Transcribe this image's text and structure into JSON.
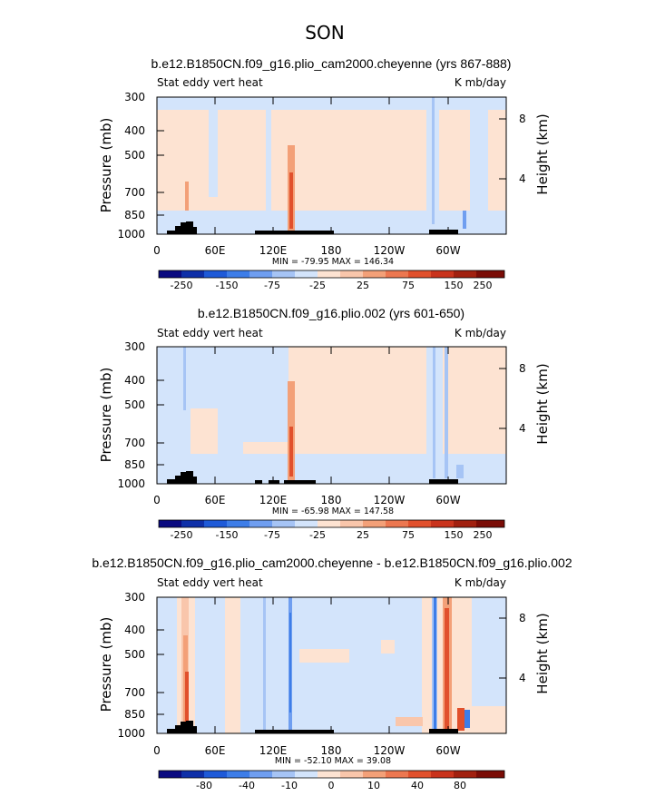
{
  "chart_data": {
    "type": "heatmap",
    "season": "SON",
    "panels": [
      {
        "title": "b.e12.B1850CN.f09_g16.plio_cam2000.cheyenne (yrs 867-888)",
        "left_label": "Stat eddy vert heat",
        "units": "K mb/day",
        "ylabel": "Pressure (mb)",
        "ylabel_right": "Height (km)",
        "y_ticks": [
          "300",
          "400",
          "500",
          "700",
          "850",
          "1000"
        ],
        "y_ticks_right": [
          "8",
          "4"
        ],
        "x_ticks": [
          "0",
          "60E",
          "120E",
          "180",
          "120W",
          "60W"
        ],
        "stats": "MIN = -79.95   MAX = 146.34",
        "colorbar_labels": [
          "-250",
          "-150",
          "-75",
          "-25",
          "25",
          "75",
          "150",
          "250"
        ],
        "colorbar_colors": [
          "#0a0a80",
          "#0e2fa8",
          "#1e5ad8",
          "#3d7de8",
          "#6f9ef0",
          "#a6c4f5",
          "#d3e4fb",
          "#fde3d2",
          "#f9c6ab",
          "#f3a078",
          "#ec7750",
          "#e1502c",
          "#c9331c",
          "#a1200f",
          "#7a0c06"
        ]
      },
      {
        "title": "b.e12.B1850CN.f09_g16.plio.002 (yrs 601-650)",
        "left_label": "Stat eddy vert heat",
        "units": "K mb/day",
        "ylabel": "Pressure (mb)",
        "ylabel_right": "Height (km)",
        "y_ticks": [
          "300",
          "400",
          "500",
          "700",
          "850",
          "1000"
        ],
        "y_ticks_right": [
          "8",
          "4"
        ],
        "x_ticks": [
          "0",
          "60E",
          "120E",
          "180",
          "120W",
          "60W"
        ],
        "stats": "MIN = -65.98   MAX = 147.58",
        "colorbar_labels": [
          "-250",
          "-150",
          "-75",
          "-25",
          "25",
          "75",
          "150",
          "250"
        ],
        "colorbar_colors": [
          "#0a0a80",
          "#0e2fa8",
          "#1e5ad8",
          "#3d7de8",
          "#6f9ef0",
          "#a6c4f5",
          "#d3e4fb",
          "#fde3d2",
          "#f9c6ab",
          "#f3a078",
          "#ec7750",
          "#e1502c",
          "#c9331c",
          "#a1200f",
          "#7a0c06"
        ]
      },
      {
        "title": "b.e12.B1850CN.f09_g16.plio_cam2000.cheyenne - b.e12.B1850CN.f09_g16.plio.002",
        "left_label": "Stat eddy vert heat",
        "units": "K mb/day",
        "ylabel": "Pressure (mb)",
        "ylabel_right": "Height (km)",
        "y_ticks": [
          "300",
          "400",
          "500",
          "700",
          "850",
          "1000"
        ],
        "y_ticks_right": [
          "8",
          "4"
        ],
        "x_ticks": [
          "0",
          "60E",
          "120E",
          "180",
          "120W",
          "60W"
        ],
        "stats": "MIN = -52.10   MAX =  39.08",
        "colorbar_labels": [
          "-80",
          "-40",
          "-10",
          "0",
          "10",
          "40",
          "80"
        ],
        "colorbar_colors": [
          "#0a0a80",
          "#0e2fa8",
          "#1e5ad8",
          "#3d7de8",
          "#6f9ef0",
          "#a6c4f5",
          "#d3e4fb",
          "#fde3d2",
          "#f9c6ab",
          "#f3a078",
          "#ec7750",
          "#e1502c",
          "#c9331c",
          "#a1200f",
          "#7a0c06"
        ]
      }
    ]
  }
}
